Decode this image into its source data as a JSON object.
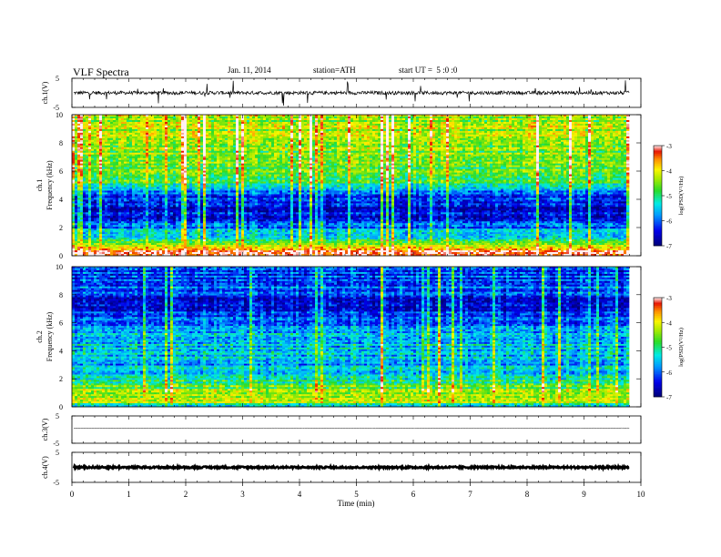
{
  "header": {
    "title": "VLF Spectra",
    "date": "Jan. 11, 2014",
    "station": "station=ATH",
    "start": "start UT =  5 :0 :0"
  },
  "colorbar": {
    "label": "log(PSD(V²/Hz)",
    "ticks": [
      "-3",
      "-4",
      "-5",
      "-6",
      "-7"
    ]
  },
  "chart_data": [
    {
      "type": "line",
      "name": "ch.1 waveform",
      "ylabel": "ch.1(V)",
      "ylim": [
        -5,
        5
      ],
      "y_ticks": [
        "5",
        "-5"
      ],
      "xlim": [
        0,
        10
      ],
      "x_data_end": 9.8,
      "baseline": 0.0,
      "noise_amplitude": 0.6
    },
    {
      "type": "heatmap",
      "name": "ch.1 spectrogram",
      "ylabel_lines": [
        "ch.1",
        "Frequency (kHz)"
      ],
      "ylim": [
        0,
        10
      ],
      "y_ticks": [
        "0",
        "2",
        "4",
        "6",
        "8",
        "10"
      ],
      "xlim": [
        0,
        10
      ],
      "x_data_end": 9.8,
      "clim": [
        -7,
        -3
      ],
      "freq_profile": [
        {
          "f": 0.0,
          "v": -3.7
        },
        {
          "f": 0.4,
          "v": -3.2
        },
        {
          "f": 0.8,
          "v": -4.8
        },
        {
          "f": 1.6,
          "v": -5.5
        },
        {
          "f": 2.5,
          "v": -6.4
        },
        {
          "f": 3.5,
          "v": -6.6
        },
        {
          "f": 4.3,
          "v": -6.1
        },
        {
          "f": 5.0,
          "v": -5.0
        },
        {
          "f": 6.5,
          "v": -4.6
        },
        {
          "f": 8.0,
          "v": -4.4
        },
        {
          "f": 10.0,
          "v": -4.3
        }
      ]
    },
    {
      "type": "heatmap",
      "name": "ch.2 spectrogram",
      "ylabel_lines": [
        "ch.2",
        "Frequency (kHz)"
      ],
      "ylim": [
        0,
        10
      ],
      "y_ticks": [
        "0",
        "2",
        "4",
        "6",
        "8",
        "10"
      ],
      "xlim": [
        0,
        10
      ],
      "x_data_end": 9.8,
      "clim": [
        -7,
        -3
      ],
      "freq_profile": [
        {
          "f": 0.0,
          "v": -5.8
        },
        {
          "f": 0.3,
          "v": -4.4
        },
        {
          "f": 1.0,
          "v": -4.4
        },
        {
          "f": 2.0,
          "v": -5.1
        },
        {
          "f": 3.0,
          "v": -5.6
        },
        {
          "f": 4.0,
          "v": -5.4
        },
        {
          "f": 5.0,
          "v": -5.5
        },
        {
          "f": 6.0,
          "v": -6.0
        },
        {
          "f": 7.3,
          "v": -6.5
        },
        {
          "f": 8.5,
          "v": -6.0
        },
        {
          "f": 10.0,
          "v": -6.2
        }
      ]
    },
    {
      "type": "line",
      "name": "ch.3 waveform",
      "ylabel": "ch.3(V)",
      "ylim": [
        -5,
        5
      ],
      "y_ticks": [
        "5",
        "-5"
      ],
      "xlim": [
        0,
        10
      ],
      "x_data_end": 9.8,
      "baseline": 0.5,
      "noise_amplitude": 0.1
    },
    {
      "type": "line",
      "name": "ch.4 waveform",
      "ylabel": "ch.4(V)",
      "ylim": [
        -5,
        5
      ],
      "y_ticks": [
        "5",
        "-5"
      ],
      "xlim": [
        0,
        10
      ],
      "x_data_end": 9.8,
      "baseline": 0.0,
      "noise_amplitude": 0.3
    }
  ],
  "x_axis": {
    "label": "Time (min)",
    "ticks": [
      "0",
      "1",
      "2",
      "3",
      "4",
      "5",
      "6",
      "7",
      "8",
      "9",
      "10"
    ]
  }
}
